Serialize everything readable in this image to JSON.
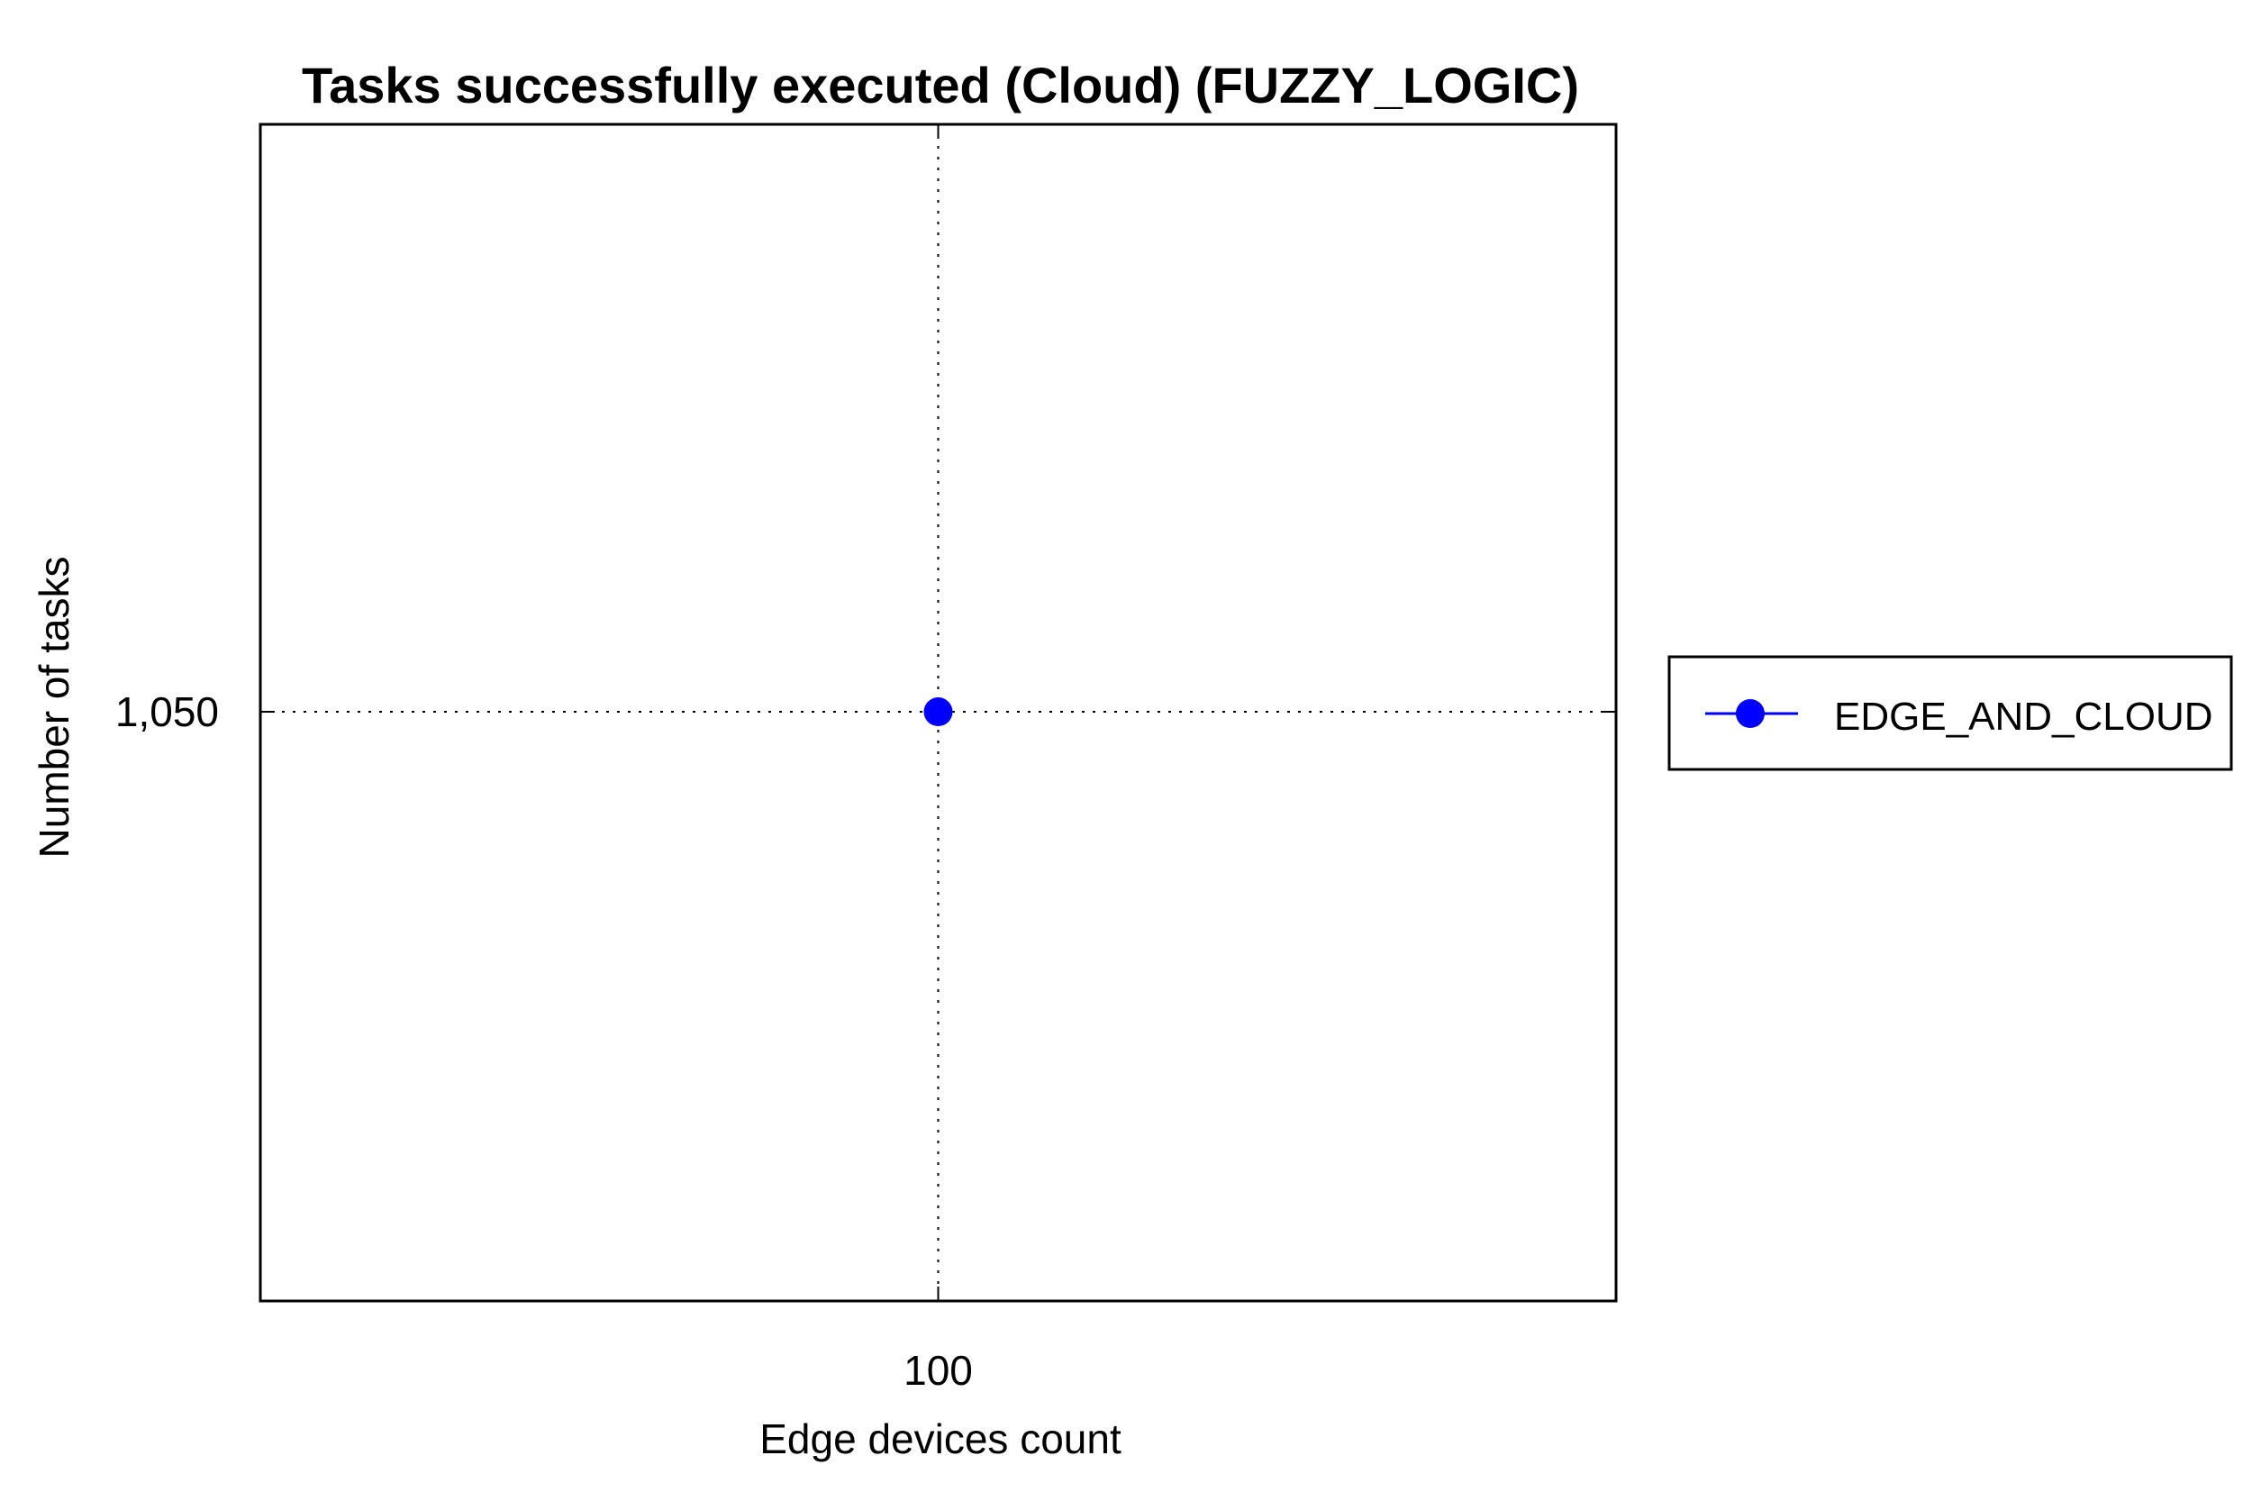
{
  "chart_data": {
    "type": "line",
    "title": "Tasks successfully executed (Cloud) (FUZZY_LOGIC)",
    "xlabel": "Edge devices count",
    "ylabel": "Number of tasks",
    "x": [
      100
    ],
    "x_tick_labels": [
      "100"
    ],
    "y_tick_values": [
      1050
    ],
    "y_tick_labels": [
      "1,050"
    ],
    "series": [
      {
        "name": "EDGE_AND_CLOUD",
        "color": "#0000ff",
        "marker": "circle",
        "values": [
          1050
        ]
      }
    ],
    "xlim": [
      99,
      101
    ],
    "ylim": [
      1049,
      1050.997
    ],
    "grid": true,
    "legend": "right"
  }
}
